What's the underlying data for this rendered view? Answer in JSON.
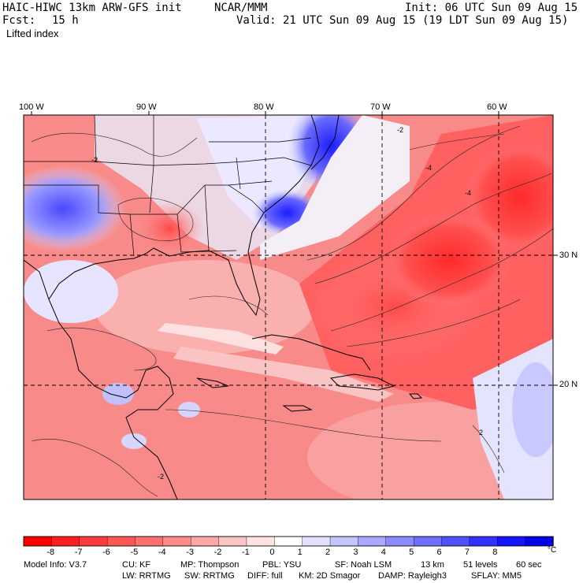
{
  "header": {
    "model": "HAIC-HIWC 13km ARW-GFS init",
    "org": "NCAR/MMM",
    "init": "Init: 06 UTC Sun 09 Aug 15",
    "fcst_label": "Fcst:",
    "fcst_value": "15 h",
    "valid": "Valid: 21 UTC Sun 09 Aug 15 (19 LDT Sun 09 Aug 15)",
    "field": "Lifted index"
  },
  "map": {
    "lon_labels": [
      "100 W",
      "90 W",
      "80 W",
      "70 W",
      "60 W"
    ],
    "lat_labels": [
      "30 N",
      "20 N"
    ],
    "contour_labels": [
      "-2",
      "-4",
      "-4",
      "-2",
      "-2",
      "2"
    ],
    "colors": {
      "negative_strong": "#ff2a2a",
      "negative_mid": "#f35a5a",
      "negative_weak": "#fbb4b4",
      "neutral": "#ffffff",
      "positive_weak": "#c8c8ff",
      "positive_strong": "#1a1aff"
    }
  },
  "colorbar": {
    "ticks": [
      "-8",
      "-7",
      "-6",
      "-5",
      "-4",
      "-3",
      "-2",
      "-1",
      "0",
      "1",
      "2",
      "3",
      "4",
      "5",
      "6",
      "7",
      "8"
    ],
    "unit": "°C",
    "colors": [
      "#ff0000",
      "#ff1f1f",
      "#ff3c3c",
      "#ff5656",
      "#ff7070",
      "#ff8c8c",
      "#ffa8a8",
      "#ffc4c4",
      "#ffe2e2",
      "#ffffff",
      "#e2e2ff",
      "#c4c4ff",
      "#a8a8ff",
      "#8c8cff",
      "#6e6eff",
      "#5050ff",
      "#3232ff",
      "#1414ff",
      "#0000e6"
    ]
  },
  "model_info": {
    "line1": [
      "Model Info: V3.7",
      "CU: KF",
      "MP: Thompson",
      "PBL: YSU",
      "SF: Noah LSM",
      "13 km",
      "51 levels",
      "60 sec"
    ],
    "line2": [
      "LW: RRTMG",
      "SW: RRTMG",
      "DIFF: full",
      "KM: 2D Smagor",
      "DAMP: Rayleigh3",
      "SFLAY: MM5"
    ]
  }
}
